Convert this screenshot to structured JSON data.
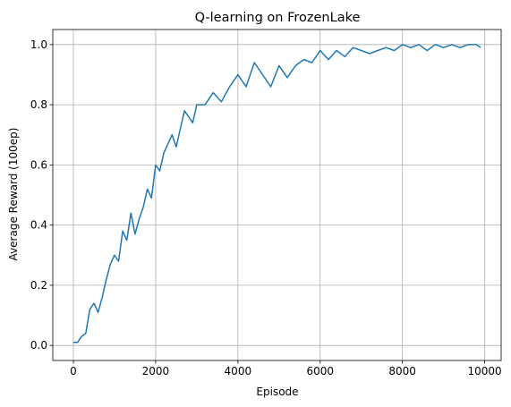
{
  "chart_data": {
    "type": "line",
    "title": "Q-learning on FrozenLake",
    "xlabel": "Episode",
    "ylabel": "Average Reward (100ep)",
    "xlim": [
      -500,
      10400
    ],
    "ylim": [
      -0.05,
      1.05
    ],
    "xticks": [
      0,
      2000,
      4000,
      6000,
      8000,
      10000
    ],
    "xtick_labels": [
      "0",
      "2000",
      "4000",
      "6000",
      "8000",
      "10000"
    ],
    "yticks": [
      0.0,
      0.2,
      0.4,
      0.6,
      0.8,
      1.0
    ],
    "ytick_labels": [
      "0.0",
      "0.2",
      "0.4",
      "0.6",
      "0.8",
      "1.0"
    ],
    "grid": true,
    "series": [
      {
        "color": "#1f77b4",
        "x": [
          0,
          100,
          200,
          300,
          400,
          500,
          600,
          700,
          800,
          900,
          1000,
          1100,
          1200,
          1300,
          1400,
          1500,
          1600,
          1700,
          1800,
          1900,
          2000,
          2100,
          2200,
          2300,
          2400,
          2500,
          2600,
          2700,
          2800,
          2900,
          3000,
          3200,
          3400,
          3600,
          3800,
          4000,
          4200,
          4400,
          4600,
          4800,
          5000,
          5200,
          5400,
          5600,
          5800,
          6000,
          6200,
          6400,
          6600,
          6800,
          7000,
          7200,
          7400,
          7600,
          7800,
          8000,
          8200,
          8400,
          8600,
          8800,
          9000,
          9200,
          9400,
          9600,
          9800,
          9900
        ],
        "y": [
          0.01,
          0.01,
          0.03,
          0.04,
          0.12,
          0.14,
          0.11,
          0.16,
          0.22,
          0.27,
          0.3,
          0.28,
          0.38,
          0.35,
          0.44,
          0.37,
          0.42,
          0.46,
          0.52,
          0.49,
          0.6,
          0.58,
          0.64,
          0.67,
          0.7,
          0.66,
          0.72,
          0.78,
          0.76,
          0.74,
          0.8,
          0.8,
          0.84,
          0.81,
          0.86,
          0.9,
          0.86,
          0.94,
          0.9,
          0.86,
          0.93,
          0.89,
          0.93,
          0.95,
          0.94,
          0.98,
          0.95,
          0.98,
          0.96,
          0.99,
          0.98,
          0.97,
          0.98,
          0.99,
          0.98,
          1.0,
          0.99,
          1.0,
          0.98,
          1.0,
          0.99,
          1.0,
          0.99,
          1.0,
          1.0,
          0.99
        ]
      }
    ]
  }
}
